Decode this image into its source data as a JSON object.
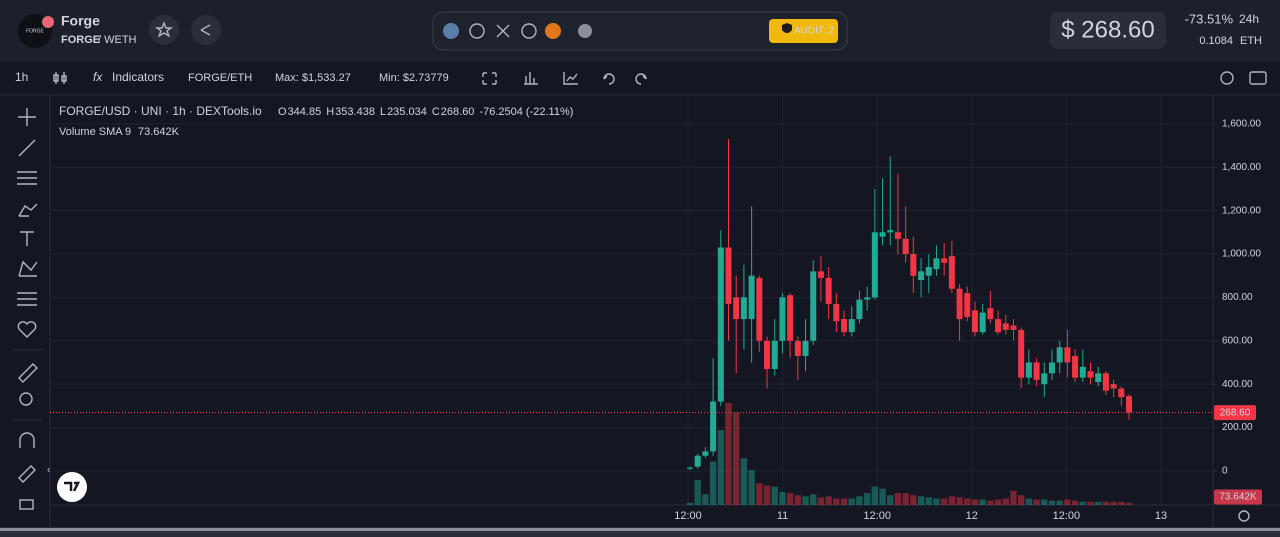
{
  "header": {
    "logo_text": "FORGE",
    "name": "Forge",
    "pair_base": "FORGE",
    "pair_quote": "/ WETH",
    "audit": "AUDIT: 2",
    "price": "$ 268.60",
    "change": "-73.51%",
    "period": "24h",
    "eth_price": "0.1084",
    "eth_unit": "ETH"
  },
  "toolbar": {
    "interval": "1h",
    "indicators": "Indicators",
    "pair": "FORGE/ETH",
    "max": "Max: $1,533.27",
    "min": "Min: $2.73779"
  },
  "legend": {
    "symbol": "FORGE/USD · UNI · 1h · DEXTools.io",
    "o_label": "O",
    "o": "344.85",
    "h_label": "H",
    "h": "353.438",
    "l_label": "L",
    "l": "235.034",
    "c_label": "C",
    "c": "268.60",
    "change": "-76.2504 (-22.11%)",
    "volume_label": "Volume SMA 9"
  },
  "chart_data": {
    "type": "candlestick",
    "open": [
      10,
      20,
      70,
      90,
      320,
      1030,
      800,
      700,
      700,
      890,
      600,
      470,
      600,
      810,
      600,
      530,
      600,
      920,
      890,
      770,
      700,
      640,
      700,
      790,
      800,
      1080,
      1100,
      1100,
      1070,
      1000,
      880,
      900,
      930,
      980,
      990,
      840,
      820,
      740,
      640,
      750,
      700,
      680,
      670,
      650,
      430,
      500,
      400,
      450,
      500,
      570,
      530,
      430,
      460,
      410,
      450,
      400,
      380,
      344.85
    ],
    "high": [
      20,
      80,
      110,
      520,
      1110,
      1530,
      900,
      950,
      1220,
      900,
      620,
      700,
      820,
      820,
      620,
      700,
      970,
      990,
      940,
      820,
      740,
      760,
      830,
      850,
      1300,
      1350,
      1450,
      1370,
      1220,
      1080,
      980,
      1000,
      1040,
      1050,
      1060,
      860,
      850,
      780,
      770,
      830,
      740,
      720,
      700,
      660,
      560,
      520,
      500,
      560,
      600,
      650,
      560,
      560,
      500,
      480,
      460,
      420,
      390,
      353.438
    ],
    "low": [
      5,
      10,
      60,
      70,
      300,
      600,
      450,
      560,
      500,
      550,
      380,
      440,
      540,
      520,
      420,
      460,
      580,
      780,
      700,
      640,
      620,
      620,
      680,
      740,
      790,
      1040,
      1040,
      1000,
      960,
      820,
      800,
      820,
      900,
      900,
      820,
      600,
      690,
      620,
      630,
      680,
      630,
      630,
      600,
      380,
      400,
      390,
      340,
      420,
      450,
      430,
      410,
      410,
      400,
      390,
      350,
      340,
      300,
      235.034
    ],
    "close": [
      15,
      70,
      90,
      320,
      1030,
      770,
      700,
      800,
      900,
      600,
      470,
      600,
      800,
      600,
      530,
      600,
      920,
      890,
      770,
      690,
      640,
      700,
      790,
      800,
      1100,
      1100,
      1110,
      1070,
      1000,
      900,
      920,
      940,
      980,
      960,
      840,
      700,
      710,
      640,
      730,
      700,
      640,
      650,
      650,
      430,
      500,
      420,
      450,
      500,
      570,
      500,
      430,
      480,
      430,
      450,
      370,
      380,
      340,
      268.6
    ],
    "volume": [
      20000,
      230000,
      100000,
      400000,
      690000,
      940000,
      850000,
      430000,
      320000,
      200000,
      180000,
      170000,
      120000,
      110000,
      90000,
      80000,
      100000,
      70000,
      80000,
      60000,
      60000,
      60000,
      80000,
      110000,
      170000,
      150000,
      90000,
      110000,
      110000,
      90000,
      80000,
      70000,
      60000,
      60000,
      80000,
      70000,
      60000,
      50000,
      50000,
      40000,
      50000,
      60000,
      130000,
      90000,
      60000,
      50000,
      50000,
      40000,
      40000,
      50000,
      40000,
      30000,
      30000,
      30000,
      30000,
      30000,
      30000,
      20000
    ],
    "up_color": "#22ab94",
    "down_color": "#f23645",
    "ylim": [
      -157,
      1733
    ],
    "yticks": [
      0,
      {
        "value": 200,
        "label": "200.00"
      },
      {
        "value": 400,
        "label": "400.00"
      },
      {
        "value": 600,
        "label": "600.00"
      },
      {
        "value": 800,
        "label": "800.00"
      },
      {
        "value": 1000,
        "label": "1,000.00"
      },
      {
        "value": 1200,
        "label": "1,200.00"
      },
      {
        "value": 1400,
        "label": "1,400.00"
      },
      {
        "value": 1600,
        "label": "1,600.00"
      }
    ],
    "xticks": [
      "12:00",
      "11",
      "12:00",
      "12",
      "12:00",
      "13"
    ],
    "price_line": {
      "value": 268.6,
      "label": "268.60"
    },
    "volume_sma": {
      "value": 73642,
      "label": "73.642K"
    },
    "grid": true
  }
}
